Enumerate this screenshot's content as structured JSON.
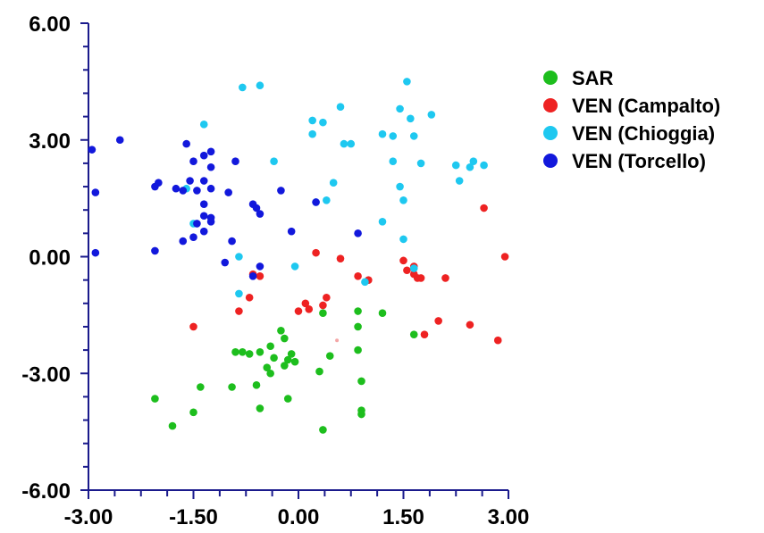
{
  "chart_data": {
    "type": "scatter",
    "xlim": [
      -3,
      3
    ],
    "ylim": [
      -6,
      6
    ],
    "x_ticks": [
      -3,
      -1.5,
      0,
      1.5,
      3
    ],
    "x_tick_labels": [
      "-3.00",
      "-1.50",
      "0.00",
      "1.50",
      "3.00"
    ],
    "y_ticks": [
      6,
      3,
      0,
      -3,
      -6
    ],
    "y_tick_labels": [
      "6.00",
      "3.00",
      "0.00",
      "-3.00",
      "-6.00"
    ],
    "grid": false,
    "legend_position": "top-right",
    "series": [
      {
        "name": "SAR",
        "color": "#1DBE1D",
        "points": [
          [
            -0.25,
            -1.9
          ],
          [
            -0.2,
            -2.1
          ],
          [
            -0.4,
            -2.3
          ],
          [
            -0.7,
            -2.5
          ],
          [
            -0.8,
            -2.45
          ],
          [
            -0.9,
            -2.45
          ],
          [
            -0.55,
            -2.45
          ],
          [
            -0.35,
            -2.6
          ],
          [
            -0.1,
            -2.5
          ],
          [
            -0.15,
            -2.65
          ],
          [
            -0.2,
            -2.8
          ],
          [
            -0.05,
            -2.7
          ],
          [
            -0.45,
            -2.85
          ],
          [
            -0.4,
            -3.0
          ],
          [
            -0.6,
            -3.3
          ],
          [
            -0.95,
            -3.35
          ],
          [
            -1.4,
            -3.35
          ],
          [
            -2.05,
            -3.65
          ],
          [
            -0.15,
            -3.65
          ],
          [
            -0.55,
            -3.9
          ],
          [
            -1.5,
            -4.0
          ],
          [
            -1.8,
            -4.35
          ],
          [
            0.3,
            -2.95
          ],
          [
            0.45,
            -2.55
          ],
          [
            0.85,
            -2.4
          ],
          [
            0.85,
            -1.8
          ],
          [
            0.85,
            -1.4
          ],
          [
            1.2,
            -1.45
          ],
          [
            0.9,
            -3.2
          ],
          [
            0.9,
            -3.95
          ],
          [
            0.9,
            -4.05
          ],
          [
            1.65,
            -2.0
          ],
          [
            0.35,
            -1.45
          ],
          [
            0.35,
            -4.45
          ]
        ]
      },
      {
        "name": "VEN (Campalto)",
        "color": "#EE2222",
        "points": [
          [
            0.25,
            0.1
          ],
          [
            0.6,
            -0.05
          ],
          [
            0.85,
            -0.5
          ],
          [
            1.0,
            -0.6
          ],
          [
            1.5,
            -0.1
          ],
          [
            1.55,
            -0.35
          ],
          [
            1.65,
            -0.25
          ],
          [
            1.65,
            -0.45
          ],
          [
            1.75,
            -0.55
          ],
          [
            1.7,
            -0.55
          ],
          [
            2.1,
            -0.55
          ],
          [
            2.65,
            1.25
          ],
          [
            2.95,
            0.0
          ],
          [
            0.1,
            -1.2
          ],
          [
            0.15,
            -1.35
          ],
          [
            0.35,
            -1.25
          ],
          [
            0.4,
            -1.05
          ],
          [
            0.0,
            -1.4
          ],
          [
            -0.55,
            -0.5
          ],
          [
            -0.7,
            -1.05
          ],
          [
            -0.85,
            -1.4
          ],
          [
            -0.65,
            -0.45
          ],
          [
            -1.5,
            -1.8
          ],
          [
            2.0,
            -1.65
          ],
          [
            2.45,
            -1.75
          ],
          [
            1.8,
            -2.0
          ],
          [
            2.85,
            -2.15
          ]
        ]
      },
      {
        "name": "VEN (Chioggia)",
        "color": "#1EC8F0",
        "points": [
          [
            -0.8,
            4.35
          ],
          [
            -0.55,
            4.4
          ],
          [
            0.6,
            3.85
          ],
          [
            1.55,
            4.5
          ],
          [
            1.45,
            3.8
          ],
          [
            1.6,
            3.55
          ],
          [
            1.9,
            3.65
          ],
          [
            1.65,
            3.1
          ],
          [
            0.2,
            3.5
          ],
          [
            0.35,
            3.45
          ],
          [
            0.2,
            3.15
          ],
          [
            0.65,
            2.9
          ],
          [
            0.75,
            2.9
          ],
          [
            1.2,
            3.15
          ],
          [
            1.35,
            3.1
          ],
          [
            1.35,
            2.45
          ],
          [
            1.75,
            2.4
          ],
          [
            2.25,
            2.35
          ],
          [
            2.45,
            2.3
          ],
          [
            2.5,
            2.45
          ],
          [
            2.65,
            2.35
          ],
          [
            2.3,
            1.95
          ],
          [
            -0.35,
            2.45
          ],
          [
            0.5,
            1.9
          ],
          [
            1.45,
            1.8
          ],
          [
            1.5,
            1.45
          ],
          [
            0.25,
            1.4
          ],
          [
            0.4,
            1.45
          ],
          [
            1.2,
            0.9
          ],
          [
            1.5,
            0.45
          ],
          [
            -1.35,
            3.4
          ],
          [
            -1.6,
            1.75
          ],
          [
            -1.5,
            0.85
          ],
          [
            -0.85,
            0.0
          ],
          [
            -0.85,
            -0.95
          ],
          [
            -0.05,
            -0.25
          ],
          [
            0.95,
            -0.65
          ],
          [
            1.65,
            -0.3
          ]
        ]
      },
      {
        "name": "VEN (Torcello)",
        "color": "#1218DC",
        "points": [
          [
            -2.55,
            3.0
          ],
          [
            -2.95,
            2.75
          ],
          [
            -2.9,
            1.65
          ],
          [
            -2.9,
            0.1
          ],
          [
            -1.6,
            2.9
          ],
          [
            -1.25,
            2.7
          ],
          [
            -1.35,
            2.6
          ],
          [
            -1.5,
            2.45
          ],
          [
            -1.25,
            2.3
          ],
          [
            -0.9,
            2.45
          ],
          [
            -1.55,
            1.95
          ],
          [
            -1.35,
            1.95
          ],
          [
            -1.25,
            1.75
          ],
          [
            -1.0,
            1.65
          ],
          [
            -2.0,
            1.9
          ],
          [
            -2.05,
            1.8
          ],
          [
            -1.75,
            1.75
          ],
          [
            -1.65,
            1.7
          ],
          [
            -1.45,
            1.7
          ],
          [
            -1.35,
            1.35
          ],
          [
            -1.25,
            1.0
          ],
          [
            -0.25,
            1.7
          ],
          [
            -0.65,
            1.35
          ],
          [
            -0.6,
            1.25
          ],
          [
            -0.55,
            1.1
          ],
          [
            -1.35,
            1.05
          ],
          [
            -1.25,
            0.9
          ],
          [
            -1.45,
            0.85
          ],
          [
            -1.35,
            0.65
          ],
          [
            -1.5,
            0.5
          ],
          [
            -1.65,
            0.4
          ],
          [
            -0.95,
            0.4
          ],
          [
            -2.05,
            0.15
          ],
          [
            -0.1,
            0.65
          ],
          [
            0.25,
            1.4
          ],
          [
            0.85,
            0.6
          ],
          [
            -1.05,
            -0.15
          ],
          [
            -0.55,
            -0.25
          ],
          [
            -0.65,
            -0.5
          ]
        ]
      },
      {
        "name": "",
        "color": "#F4A6A6",
        "points": [
          [
            0.55,
            -2.15
          ]
        ]
      }
    ]
  }
}
